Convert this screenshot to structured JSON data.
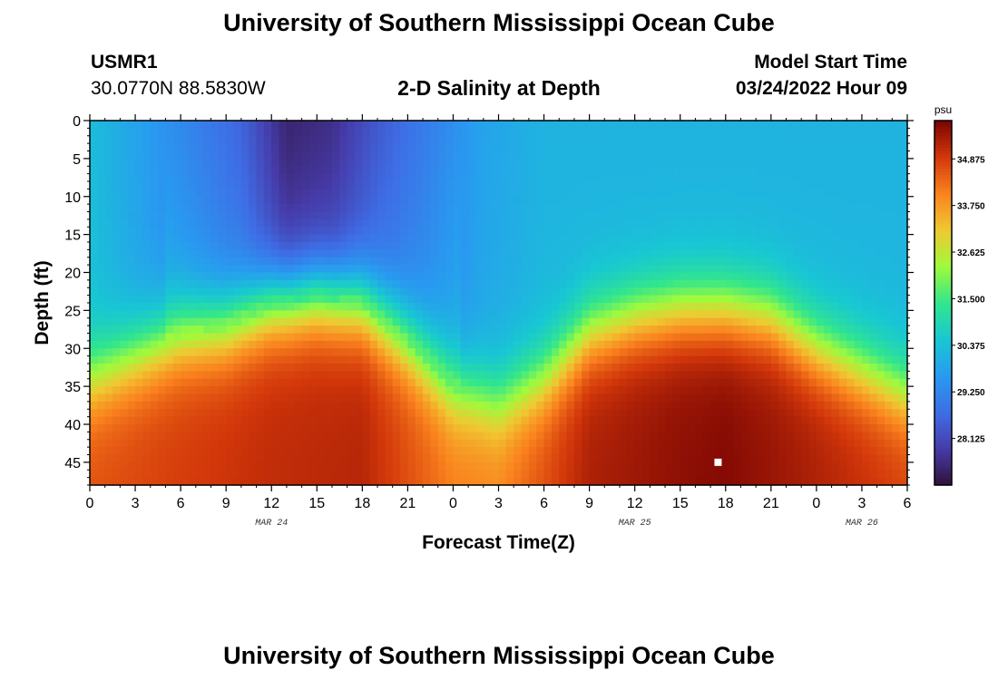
{
  "header": {
    "title": "University of Southern Mississippi Ocean Cube",
    "station": "USMR1",
    "coordinates": "30.0770N  88.5830W",
    "subtitle": "2-D Salinity at Depth",
    "model_start_label": "Model Start Time",
    "model_start_value": "03/24/2022 Hour 09"
  },
  "footer": {
    "title": "University of Southern Mississippi Ocean Cube"
  },
  "chart_data": {
    "type": "heatmap",
    "xlabel": "Forecast Time(Z)",
    "ylabel": "Depth (ft)",
    "xlim": [
      0,
      54
    ],
    "ylim": [
      48,
      0
    ],
    "x_ticks": [
      0,
      3,
      6,
      9,
      12,
      15,
      18,
      21,
      24,
      27,
      30,
      33,
      36,
      39,
      42,
      45,
      48,
      51,
      54
    ],
    "x_tick_labels": [
      "0",
      "3",
      "6",
      "9",
      "12",
      "15",
      "18",
      "21",
      "0",
      "3",
      "6",
      "9",
      "12",
      "15",
      "18",
      "21",
      "0",
      "3",
      "6"
    ],
    "y_ticks": [
      0,
      5,
      10,
      15,
      20,
      25,
      30,
      35,
      40,
      45
    ],
    "y_tick_labels": [
      "0",
      "5",
      "10",
      "15",
      "20",
      "25",
      "30",
      "35",
      "40",
      "45"
    ],
    "date_labels": [
      {
        "x": 12,
        "text": "MAR 24"
      },
      {
        "x": 36,
        "text": "MAR 25"
      },
      {
        "x": 51,
        "text": "MAR 26"
      }
    ],
    "colorbar": {
      "unit": "psu",
      "min": 27.0,
      "max": 35.8,
      "tick_values": [
        34.875,
        33.75,
        32.625,
        31.5,
        30.375,
        29.25,
        28.125
      ],
      "tick_labels": [
        "34.875",
        "33.750",
        "32.625",
        "31.500",
        "30.375",
        "29.250",
        "28.125"
      ]
    },
    "halocline_depth_by_hour": [
      {
        "x": 0,
        "depth": 34
      },
      {
        "x": 3,
        "depth": 31
      },
      {
        "x": 6,
        "depth": 28
      },
      {
        "x": 9,
        "depth": 27
      },
      {
        "x": 12,
        "depth": 24
      },
      {
        "x": 15,
        "depth": 23
      },
      {
        "x": 18,
        "depth": 24
      },
      {
        "x": 21,
        "depth": 29
      },
      {
        "x": 24,
        "depth": 35
      },
      {
        "x": 27,
        "depth": 37
      },
      {
        "x": 30,
        "depth": 34
      },
      {
        "x": 33,
        "depth": 28
      },
      {
        "x": 36,
        "depth": 26
      },
      {
        "x": 39,
        "depth": 25
      },
      {
        "x": 42,
        "depth": 25
      },
      {
        "x": 45,
        "depth": 26
      },
      {
        "x": 48,
        "depth": 30
      },
      {
        "x": 51,
        "depth": 33
      },
      {
        "x": 54,
        "depth": 36
      }
    ],
    "surface_low_salinity": [
      {
        "x": 0,
        "value": 30.3
      },
      {
        "x": 6,
        "value": 29.3
      },
      {
        "x": 10,
        "value": 28.6
      },
      {
        "x": 13,
        "value": 27.4
      },
      {
        "x": 16,
        "value": 27.6
      },
      {
        "x": 19,
        "value": 28.4
      },
      {
        "x": 22,
        "value": 29.0
      },
      {
        "x": 26,
        "value": 29.8
      },
      {
        "x": 30,
        "value": 30.1
      },
      {
        "x": 54,
        "value": 30.1
      }
    ],
    "bottom_high_salinity": [
      {
        "x": 0,
        "value": 34.6
      },
      {
        "x": 12,
        "value": 35.1
      },
      {
        "x": 18,
        "value": 35.2
      },
      {
        "x": 24,
        "value": 34.1
      },
      {
        "x": 27,
        "value": 34.0
      },
      {
        "x": 33,
        "value": 35.3
      },
      {
        "x": 39,
        "value": 35.6
      },
      {
        "x": 42,
        "value": 35.7
      },
      {
        "x": 48,
        "value": 35.3
      },
      {
        "x": 54,
        "value": 34.8
      }
    ],
    "marker": {
      "x": 41.5,
      "y": 45
    }
  }
}
